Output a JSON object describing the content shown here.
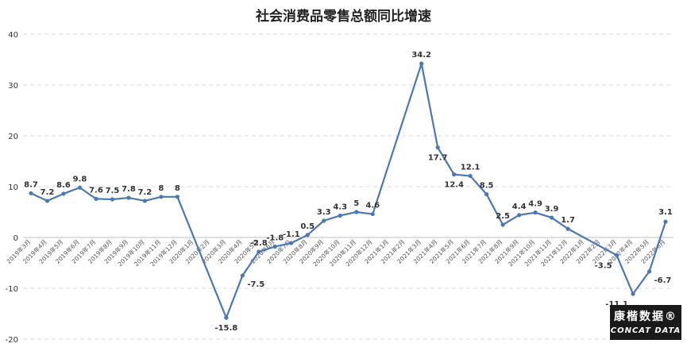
{
  "chart_data": {
    "type": "line",
    "title": "社会消费品零售总额同比增速",
    "ylim": [
      -20,
      40
    ],
    "yticks": [
      -20,
      -10,
      0,
      10,
      20,
      30,
      40
    ],
    "grid": true,
    "categories": [
      "2019年3月",
      "2019年4月",
      "2019年5月",
      "2019年6月",
      "2019年7月",
      "2019年8月",
      "2019年9月",
      "2019年10月",
      "2019年11月",
      "2019年12月",
      "2020年1月",
      "2020年2月",
      "2020年3月",
      "2020年4月",
      "2020年5月",
      "2020年6月",
      "2020年7月",
      "2020年8月",
      "2020年9月",
      "2020年10月",
      "2020年11月",
      "2020年12月",
      "2021年1月",
      "2021年2月",
      "2021年3月",
      "2021年4月",
      "2021年5月",
      "2021年6月",
      "2021年7月",
      "2021年8月",
      "2021年9月",
      "2021年10月",
      "2021年11月",
      "2021年12月",
      "2022年1月",
      "2022年2月",
      "2022年3月",
      "2022年4月",
      "2022年5月",
      "2022年6月"
    ],
    "series": [
      {
        "values": [
          8.7,
          7.2,
          8.6,
          9.8,
          7.6,
          7.5,
          7.8,
          7.2,
          8,
          8,
          null,
          null,
          -15.8,
          -7.5,
          -2.8,
          -1.8,
          -1.1,
          0.5,
          3.3,
          4.3,
          5,
          4.6,
          null,
          null,
          34.2,
          17.7,
          12.4,
          12.1,
          8.5,
          2.5,
          4.4,
          4.9,
          3.9,
          1.7,
          null,
          null,
          -3.5,
          -11.1,
          -6.7,
          3.1
        ],
        "labels": [
          "8.7",
          "7.2",
          "8.6",
          "9.8",
          "7.6",
          "7.5",
          "7.8",
          "7.2",
          "8",
          "8",
          "",
          "",
          "-15.8",
          "-7.5",
          "-2.8",
          "-1.8",
          "-1.1",
          "0.5",
          "3.3",
          "4.3",
          "5",
          "4.6",
          "",
          "",
          "34.2",
          "17.7",
          "12.4",
          "12.1",
          "8.5",
          "2.5",
          "4.4",
          "4.9",
          "3.9",
          "1.7",
          "",
          "",
          "-3.5",
          "-11.1",
          "-6.7",
          "3.1"
        ]
      }
    ],
    "colors": {
      "line": "#4a78b5",
      "grid": "#d9d9d9",
      "axis": "#bfbfbf",
      "text": "#333333"
    }
  },
  "logo": {
    "cn": "康楷数据®",
    "en": "CONCAT DATA"
  }
}
